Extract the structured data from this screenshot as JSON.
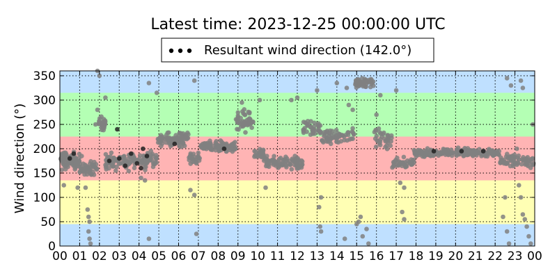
{
  "chart_data": {
    "type": "scatter",
    "title": "Latest time: 2023-12-25 00:00:00 UTC",
    "ylabel": "Wind direction (°)",
    "xlabel": "",
    "xlim": [
      0,
      24
    ],
    "ylim": [
      0,
      360
    ],
    "x_tick_labels": [
      "00",
      "01",
      "02",
      "03",
      "04",
      "05",
      "06",
      "07",
      "08",
      "09",
      "10",
      "11",
      "12",
      "13",
      "14",
      "15",
      "16",
      "17",
      "18",
      "19",
      "20",
      "21",
      "22",
      "23",
      "00"
    ],
    "y_ticks": [
      0,
      50,
      100,
      150,
      200,
      250,
      300,
      350
    ],
    "grid": true,
    "legend": {
      "placement": "top-center",
      "entry": "Resultant wind direction (142.0°)",
      "color": "#000000"
    },
    "bands": [
      {
        "from": 0,
        "to": 45,
        "color": "#bfe0ff"
      },
      {
        "from": 45,
        "to": 135,
        "color": "#ffffb4"
      },
      {
        "from": 135,
        "to": 225,
        "color": "#ffb4b4"
      },
      {
        "from": 225,
        "to": 315,
        "color": "#b4ffb4"
      },
      {
        "from": 315,
        "to": 360,
        "color": "#bfe0ff"
      }
    ],
    "series": [
      {
        "color": "#808080",
        "segments": [
          {
            "x0": 0.0,
            "x1": 1.0,
            "center": 175,
            "spread": 25,
            "n": 85
          },
          {
            "x0": 1.0,
            "x1": 1.9,
            "center": 160,
            "spread": 20,
            "n": 45
          },
          {
            "x0": 1.9,
            "x1": 2.3,
            "center": 250,
            "spread": 20,
            "n": 25
          },
          {
            "x0": 2.3,
            "x1": 4.5,
            "center": 175,
            "spread": 25,
            "n": 120
          },
          {
            "x0": 4.5,
            "x1": 4.9,
            "center": 180,
            "spread": 20,
            "n": 20
          },
          {
            "x0": 4.9,
            "x1": 6.5,
            "center": 220,
            "spread": 20,
            "n": 90
          },
          {
            "x0": 6.5,
            "x1": 7.1,
            "center": 180,
            "spread": 15,
            "n": 25
          },
          {
            "x0": 7.1,
            "x1": 8.9,
            "center": 205,
            "spread": 15,
            "n": 95
          },
          {
            "x0": 8.9,
            "x1": 9.8,
            "center": 255,
            "spread": 30,
            "n": 50
          },
          {
            "x0": 9.8,
            "x1": 10.3,
            "center": 190,
            "spread": 15,
            "n": 25
          },
          {
            "x0": 10.3,
            "x1": 12.3,
            "center": 170,
            "spread": 20,
            "n": 90
          },
          {
            "x0": 12.3,
            "x1": 13.2,
            "center": 240,
            "spread": 25,
            "n": 40
          },
          {
            "x0": 13.2,
            "x1": 14.9,
            "center": 225,
            "spread": 25,
            "n": 60
          },
          {
            "x0": 14.9,
            "x1": 15.9,
            "center": 335,
            "spread": 15,
            "n": 45
          },
          {
            "x0": 15.9,
            "x1": 16.8,
            "center": 220,
            "spread": 30,
            "n": 35
          },
          {
            "x0": 16.8,
            "x1": 17.9,
            "center": 170,
            "spread": 15,
            "n": 40
          },
          {
            "x0": 17.9,
            "x1": 22.2,
            "center": 192,
            "spread": 12,
            "n": 200
          },
          {
            "x0": 22.2,
            "x1": 24.0,
            "center": 175,
            "spread": 20,
            "n": 70
          }
        ],
        "outliers": [
          [
            0.2,
            125
          ],
          [
            0.9,
            120
          ],
          [
            1.1,
            185
          ],
          [
            1.3,
            120
          ],
          [
            1.4,
            75
          ],
          [
            1.45,
            60
          ],
          [
            1.5,
            15
          ],
          [
            1.55,
            5
          ],
          [
            1.45,
            30
          ],
          [
            1.5,
            50
          ],
          [
            1.9,
            360
          ],
          [
            2.0,
            350
          ],
          [
            1.8,
            250
          ],
          [
            1.9,
            280
          ],
          [
            2.3,
            305
          ],
          [
            4.1,
            140
          ],
          [
            4.3,
            135
          ],
          [
            4.5,
            15
          ],
          [
            4.5,
            335
          ],
          [
            4.9,
            315
          ],
          [
            6.6,
            115
          ],
          [
            6.8,
            105
          ],
          [
            6.9,
            25
          ],
          [
            6.8,
            340
          ],
          [
            9.2,
            295
          ],
          [
            10.1,
            300
          ],
          [
            10.4,
            120
          ],
          [
            11.7,
            300
          ],
          [
            12.0,
            305
          ],
          [
            13.0,
            320
          ],
          [
            13.1,
            80
          ],
          [
            13.2,
            100
          ],
          [
            13.15,
            40
          ],
          [
            13.2,
            30
          ],
          [
            14.0,
            335
          ],
          [
            14.4,
            15
          ],
          [
            14.5,
            325
          ],
          [
            14.6,
            290
          ],
          [
            14.8,
            280
          ],
          [
            15.0,
            45
          ],
          [
            15.1,
            50
          ],
          [
            15.2,
            60
          ],
          [
            15.3,
            20
          ],
          [
            15.5,
            35
          ],
          [
            15.6,
            5
          ],
          [
            16.0,
            270
          ],
          [
            16.2,
            310
          ],
          [
            17.0,
            320
          ],
          [
            17.3,
            70
          ],
          [
            17.4,
            55
          ],
          [
            17.2,
            130
          ],
          [
            17.4,
            120
          ],
          [
            22.4,
            60
          ],
          [
            22.5,
            100
          ],
          [
            22.6,
            30
          ],
          [
            22.7,
            5
          ],
          [
            22.6,
            345
          ],
          [
            22.8,
            330
          ],
          [
            23.2,
            125
          ],
          [
            23.3,
            100
          ],
          [
            23.4,
            65
          ],
          [
            23.5,
            55
          ],
          [
            23.6,
            40
          ],
          [
            23.7,
            20
          ],
          [
            23.8,
            5
          ],
          [
            23.3,
            340
          ],
          [
            23.4,
            325
          ],
          [
            23.1,
            200
          ],
          [
            23.9,
            250
          ]
        ]
      },
      {
        "color": "#222222",
        "points": [
          [
            0.5,
            180
          ],
          [
            0.7,
            190
          ],
          [
            2.5,
            175
          ],
          [
            3.0,
            180
          ],
          [
            3.3,
            165
          ],
          [
            3.6,
            190
          ],
          [
            3.9,
            170
          ],
          [
            4.1,
            160
          ],
          [
            4.2,
            200
          ],
          [
            4.4,
            185
          ],
          [
            2.9,
            240
          ],
          [
            5.8,
            210
          ],
          [
            8.3,
            200
          ],
          [
            18.9,
            195
          ],
          [
            20.3,
            195
          ],
          [
            21.4,
            195
          ]
        ]
      }
    ]
  }
}
